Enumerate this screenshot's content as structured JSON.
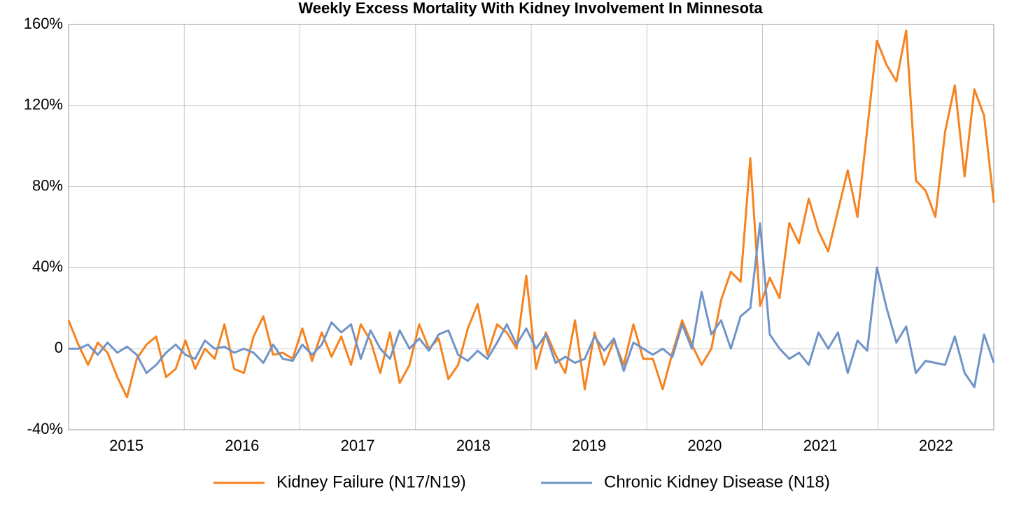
{
  "chart_data": {
    "type": "line",
    "title": "Weekly Excess Mortality With Kidney Involvement In Minnesota",
    "categories": [
      null,
      null,
      null,
      null,
      null,
      null,
      "2015",
      null,
      null,
      null,
      null,
      null,
      null,
      null,
      null,
      null,
      null,
      null,
      "2016",
      null,
      null,
      null,
      null,
      null,
      null,
      null,
      null,
      null,
      null,
      null,
      "2017",
      null,
      null,
      null,
      null,
      null,
      null,
      null,
      null,
      null,
      null,
      null,
      "2018",
      null,
      null,
      null,
      null,
      null,
      null,
      null,
      null,
      null,
      null,
      null,
      "2019",
      null,
      null,
      null,
      null,
      null,
      null,
      null,
      null,
      null,
      null,
      null,
      "2020",
      null,
      null,
      null,
      null,
      null,
      null,
      null,
      null,
      null,
      null,
      null,
      "2021",
      null,
      null,
      null,
      null,
      null,
      null,
      null,
      null,
      null,
      null,
      null,
      "2022",
      null,
      null,
      null,
      null,
      null
    ],
    "series": [
      {
        "name": "Kidney Failure (N17/N19)",
        "color": "#f5831f",
        "values": [
          14,
          2,
          -8,
          3,
          -2,
          -14,
          -24,
          -5,
          2,
          6,
          -14,
          -10,
          4,
          -10,
          0,
          -5,
          12,
          -10,
          -12,
          6,
          16,
          -3,
          -2,
          -5,
          10,
          -6,
          8,
          -4,
          6,
          -8,
          12,
          4,
          -12,
          8,
          -17,
          -8,
          12,
          0,
          5,
          -15,
          -8,
          10,
          22,
          -3,
          12,
          8,
          0,
          36,
          -10,
          8,
          -3,
          -12,
          14,
          -20,
          8,
          -8,
          4,
          -8,
          12,
          -5,
          -5,
          -20,
          -2,
          14,
          2,
          -8,
          0,
          24,
          38,
          33,
          94,
          21,
          35,
          25,
          62,
          52,
          74,
          58,
          48,
          68,
          88,
          65,
          108,
          152,
          140,
          132,
          157,
          83,
          78,
          65,
          107,
          130,
          85,
          128,
          115,
          72
        ]
      },
      {
        "name": "Chronic Kidney Disease (N18)",
        "color": "#7094c8",
        "values": [
          0,
          0,
          2,
          -3,
          3,
          -2,
          1,
          -3,
          -12,
          -8,
          -2,
          2,
          -3,
          -5,
          4,
          0,
          1,
          -2,
          0,
          -2,
          -7,
          2,
          -5,
          -6,
          2,
          -3,
          2,
          13,
          8,
          12,
          -5,
          9,
          0,
          -5,
          9,
          0,
          5,
          -1,
          7,
          9,
          -3,
          -6,
          -1,
          -5,
          3,
          12,
          2,
          10,
          0,
          7,
          -7,
          -4,
          -7,
          -5,
          6,
          -1,
          5,
          -11,
          3,
          0,
          -3,
          0,
          -4,
          12,
          0,
          28,
          7,
          14,
          0,
          16,
          20,
          62,
          7,
          0,
          -5,
          -2,
          -8,
          8,
          0,
          8,
          -12,
          4,
          -1,
          40,
          20,
          3,
          11,
          -12,
          -6,
          -7,
          -8,
          6,
          -12,
          -19,
          7,
          -7
        ]
      }
    ],
    "ylim": [
      -40,
      160
    ],
    "yticks": [
      {
        "value": -40,
        "label": "-40%"
      },
      {
        "value": 0,
        "label": "0"
      },
      {
        "value": 40,
        "label": "40%"
      },
      {
        "value": 80,
        "label": "80%"
      },
      {
        "value": 120,
        "label": "120%"
      },
      {
        "value": 160,
        "label": "160%"
      }
    ],
    "grid": true,
    "legend": "bottom"
  }
}
